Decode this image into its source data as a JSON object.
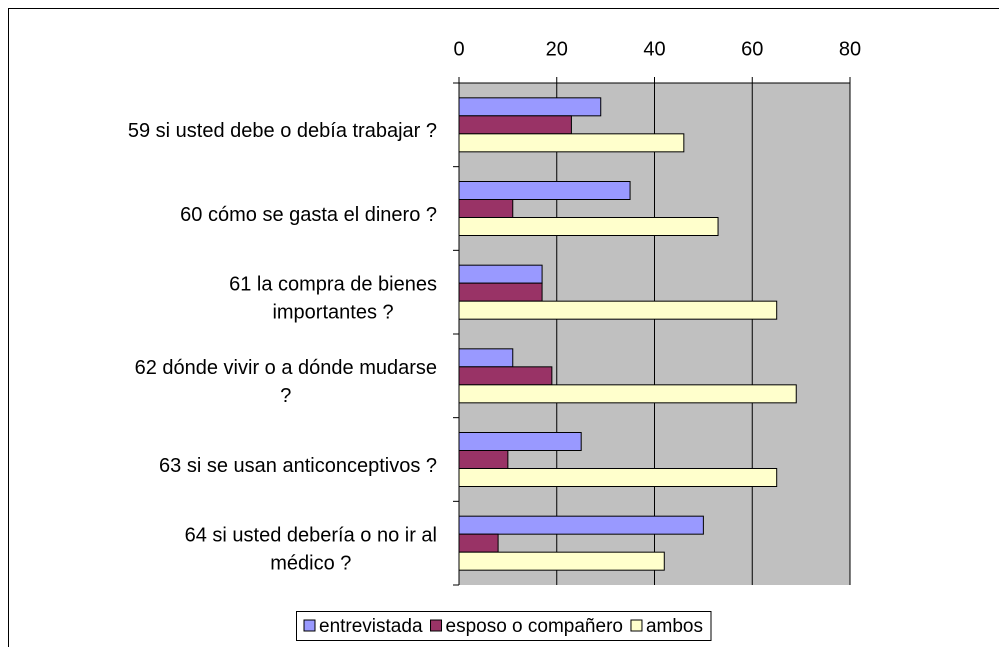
{
  "chart_data": {
    "type": "bar",
    "orientation": "horizontal",
    "categories": [
      [
        "59 si usted debe o debía trabajar ?"
      ],
      [
        "60 cómo se gasta el dinero ?"
      ],
      [
        "61 la compra de bienes",
        "importantes ?"
      ],
      [
        "62 dónde vivir o a dónde mudarse",
        "?"
      ],
      [
        "63 si se usan anticonceptivos ?"
      ],
      [
        "64 si usted debería o no ir al",
        "médico ?"
      ]
    ],
    "series": [
      {
        "name": "entrevistada",
        "color": "#9999ff",
        "values": [
          29,
          35,
          17,
          11,
          25,
          50
        ]
      },
      {
        "name": "esposo o compañero",
        "color": "#993366",
        "values": [
          23,
          11,
          17,
          19,
          10,
          8
        ]
      },
      {
        "name": "ambos",
        "color": "#ffffcc",
        "values": [
          46,
          53,
          65,
          69,
          65,
          42
        ]
      }
    ],
    "xlim": [
      0,
      80
    ],
    "xticks": [
      0,
      20,
      40,
      60,
      80
    ],
    "grid": true,
    "legend": "bottom"
  }
}
